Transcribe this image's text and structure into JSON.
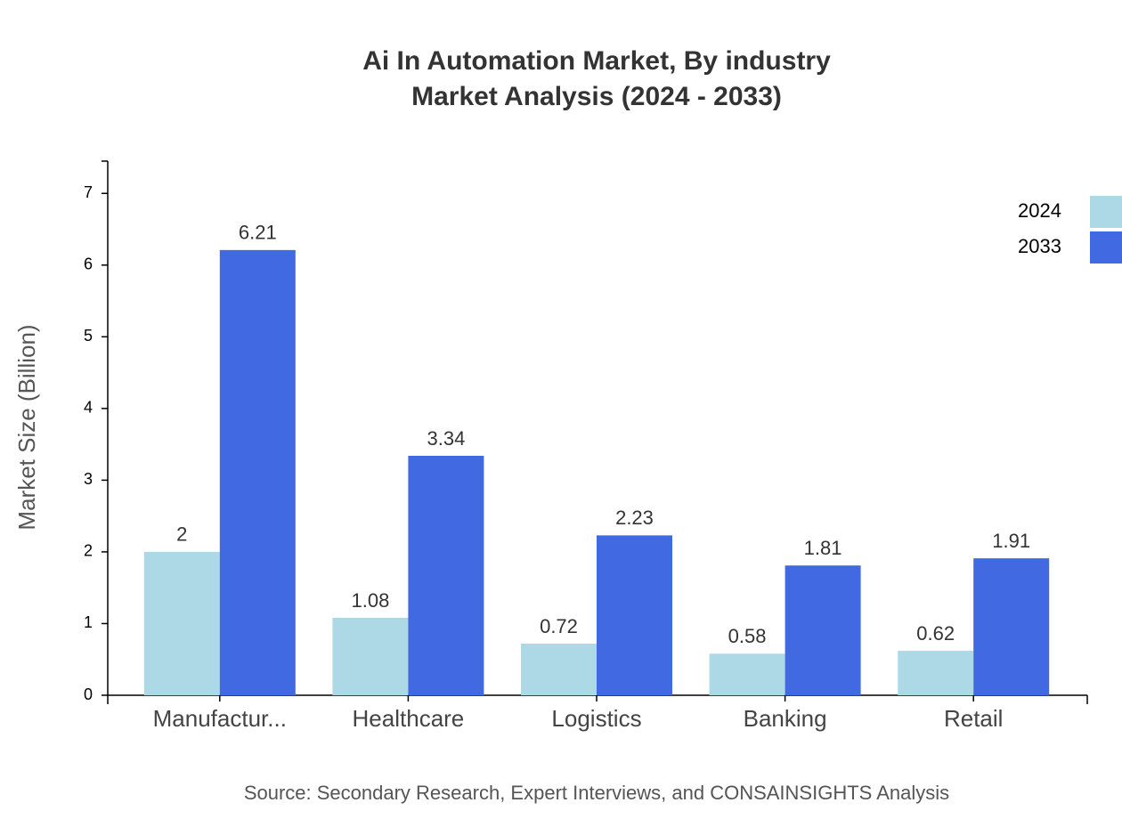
{
  "chart_data": {
    "type": "bar",
    "title": "Ai In Automation Market, By industry",
    "subtitle": "Market Analysis (2024 - 2033)",
    "y_label": "Market Size (Billion)",
    "source": "Source: Secondary Research, Expert Interviews, and CONSAINSIGHTS Analysis",
    "categories": [
      "Manufactur...",
      "Healthcare",
      "Logistics",
      "Banking",
      "Retail"
    ],
    "series": [
      {
        "name": "2024",
        "color": "#add8e6",
        "values": [
          2,
          1.08,
          0.72,
          0.58,
          0.62
        ]
      },
      {
        "name": "2033",
        "color": "#4169e1",
        "values": [
          6.21,
          3.34,
          2.23,
          1.81,
          1.91
        ]
      }
    ],
    "ylim": [
      0,
      7.45
    ],
    "yticks": [
      0,
      1,
      2,
      3,
      4,
      5,
      6,
      7
    ],
    "legend": "top-right"
  }
}
